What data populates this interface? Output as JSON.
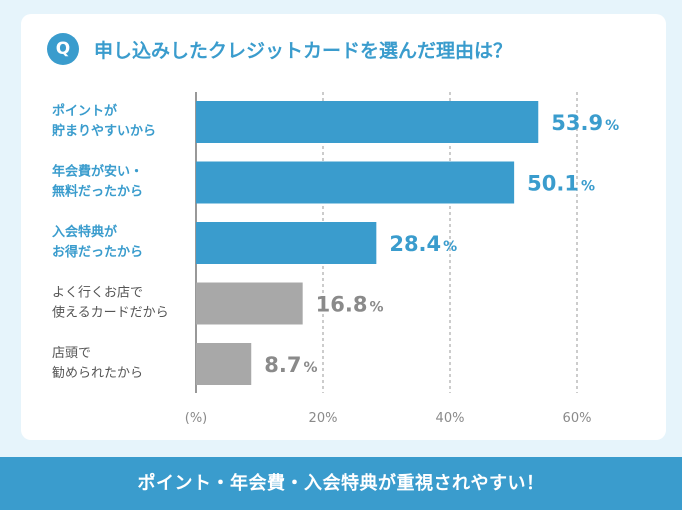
{
  "question": {
    "badge": "Q",
    "title": "申し込みしたクレジットカードを選んだ理由は？"
  },
  "footer": {
    "text": "ポイント・年会費・入会特典が重視されやすい！"
  },
  "colors": {
    "accent": "#3a9ccd",
    "gray": "#a8a8a8",
    "highlight_text": "#3a9ccd",
    "muted_text": "#8a8a8a"
  },
  "chart_data": {
    "type": "bar",
    "orientation": "horizontal",
    "categories": [
      [
        "ポイントが",
        "貯まりやすいから"
      ],
      [
        "年会費が安い・",
        "無料だったから"
      ],
      [
        "入会特典が",
        "お得だったから"
      ],
      [
        "よく行くお店で",
        "使えるカードだから"
      ],
      [
        "店頭で",
        "勧められたから"
      ]
    ],
    "values": [
      53.9,
      50.1,
      28.4,
      16.8,
      8.7
    ],
    "unit": "%",
    "highlighted_count": 3,
    "xlim": [
      0,
      60
    ],
    "xticks": [
      20,
      40,
      60
    ],
    "xtick_labels": [
      "20%",
      "40%",
      "60%"
    ],
    "x_unit_label": "(%)",
    "grid": true
  }
}
